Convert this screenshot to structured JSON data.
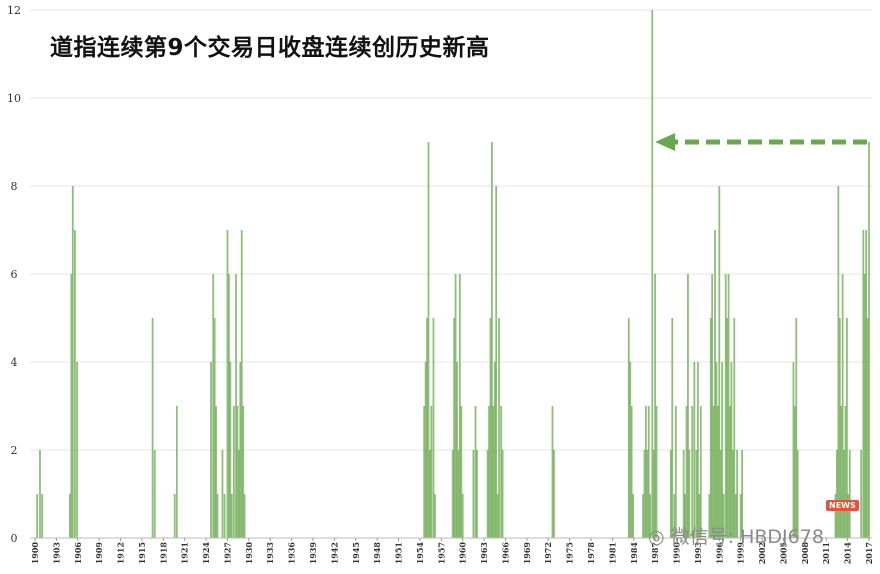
{
  "chart_data": {
    "type": "bar",
    "title": "道指连续第9个交易日收盘连续创历史新高",
    "xlabel": "",
    "ylabel": "",
    "ylim": [
      0,
      12
    ],
    "xlim": [
      1900,
      2017
    ],
    "yticks": [
      "0",
      "2",
      "4",
      "6",
      "8",
      "10",
      "12"
    ],
    "xticks": [
      "1900",
      "1903",
      "1906",
      "1909",
      "1912",
      "1915",
      "1918",
      "1921",
      "1924",
      "1927",
      "1930",
      "1933",
      "1936",
      "1939",
      "1942",
      "1945",
      "1948",
      "1951",
      "1954",
      "1957",
      "1960",
      "1963",
      "1966",
      "1969",
      "1972",
      "1975",
      "1978",
      "1981",
      "1984",
      "1987",
      "1990",
      "1993",
      "1996",
      "1999",
      "2002",
      "2005",
      "2008",
      "2011",
      "2014",
      "2017"
    ],
    "grid": true,
    "bar_color": "#6aa84f",
    "bars": [
      {
        "x": 1900.3,
        "y": 1
      },
      {
        "x": 1900.7,
        "y": 2
      },
      {
        "x": 1901.0,
        "y": 1
      },
      {
        "x": 1904.9,
        "y": 1
      },
      {
        "x": 1905.1,
        "y": 6
      },
      {
        "x": 1905.3,
        "y": 8
      },
      {
        "x": 1905.6,
        "y": 7
      },
      {
        "x": 1905.9,
        "y": 4
      },
      {
        "x": 1916.5,
        "y": 5
      },
      {
        "x": 1916.8,
        "y": 2
      },
      {
        "x": 1919.6,
        "y": 1
      },
      {
        "x": 1919.9,
        "y": 3
      },
      {
        "x": 1924.7,
        "y": 4
      },
      {
        "x": 1925.0,
        "y": 6
      },
      {
        "x": 1925.2,
        "y": 5
      },
      {
        "x": 1925.4,
        "y": 3
      },
      {
        "x": 1925.6,
        "y": 1
      },
      {
        "x": 1926.3,
        "y": 2
      },
      {
        "x": 1926.6,
        "y": 1
      },
      {
        "x": 1927.0,
        "y": 7
      },
      {
        "x": 1927.2,
        "y": 6
      },
      {
        "x": 1927.4,
        "y": 4
      },
      {
        "x": 1927.6,
        "y": 1
      },
      {
        "x": 1927.9,
        "y": 3
      },
      {
        "x": 1928.2,
        "y": 6
      },
      {
        "x": 1928.4,
        "y": 3
      },
      {
        "x": 1928.6,
        "y": 2
      },
      {
        "x": 1928.8,
        "y": 4
      },
      {
        "x": 1929.0,
        "y": 7
      },
      {
        "x": 1929.2,
        "y": 3
      },
      {
        "x": 1929.4,
        "y": 1
      },
      {
        "x": 1954.6,
        "y": 3
      },
      {
        "x": 1954.8,
        "y": 4
      },
      {
        "x": 1955.0,
        "y": 5
      },
      {
        "x": 1955.2,
        "y": 9
      },
      {
        "x": 1955.4,
        "y": 2
      },
      {
        "x": 1955.6,
        "y": 3
      },
      {
        "x": 1955.9,
        "y": 5
      },
      {
        "x": 1956.1,
        "y": 1
      },
      {
        "x": 1958.6,
        "y": 2
      },
      {
        "x": 1958.8,
        "y": 5
      },
      {
        "x": 1959.0,
        "y": 6
      },
      {
        "x": 1959.2,
        "y": 4
      },
      {
        "x": 1959.4,
        "y": 2
      },
      {
        "x": 1959.6,
        "y": 6
      },
      {
        "x": 1959.8,
        "y": 3
      },
      {
        "x": 1960.0,
        "y": 1
      },
      {
        "x": 1961.5,
        "y": 2
      },
      {
        "x": 1961.8,
        "y": 3
      },
      {
        "x": 1962.0,
        "y": 2
      },
      {
        "x": 1963.5,
        "y": 2
      },
      {
        "x": 1963.7,
        "y": 3
      },
      {
        "x": 1963.9,
        "y": 5
      },
      {
        "x": 1964.1,
        "y": 9
      },
      {
        "x": 1964.3,
        "y": 3
      },
      {
        "x": 1964.5,
        "y": 4
      },
      {
        "x": 1964.7,
        "y": 8
      },
      {
        "x": 1964.9,
        "y": 1
      },
      {
        "x": 1965.1,
        "y": 5
      },
      {
        "x": 1965.4,
        "y": 3
      },
      {
        "x": 1965.6,
        "y": 2
      },
      {
        "x": 1972.6,
        "y": 3
      },
      {
        "x": 1972.8,
        "y": 2
      },
      {
        "x": 1983.3,
        "y": 5
      },
      {
        "x": 1983.5,
        "y": 4
      },
      {
        "x": 1983.7,
        "y": 3
      },
      {
        "x": 1983.9,
        "y": 1
      },
      {
        "x": 1985.3,
        "y": 1
      },
      {
        "x": 1985.5,
        "y": 2
      },
      {
        "x": 1985.7,
        "y": 3
      },
      {
        "x": 1985.9,
        "y": 2
      },
      {
        "x": 1986.1,
        "y": 3
      },
      {
        "x": 1986.3,
        "y": 1
      },
      {
        "x": 1986.6,
        "y": 12
      },
      {
        "x": 1986.8,
        "y": 2
      },
      {
        "x": 1987.0,
        "y": 6
      },
      {
        "x": 1987.2,
        "y": 3
      },
      {
        "x": 1989.2,
        "y": 2
      },
      {
        "x": 1989.4,
        "y": 5
      },
      {
        "x": 1989.7,
        "y": 1
      },
      {
        "x": 1989.9,
        "y": 3
      },
      {
        "x": 1991.0,
        "y": 2
      },
      {
        "x": 1991.2,
        "y": 1
      },
      {
        "x": 1991.4,
        "y": 3
      },
      {
        "x": 1991.6,
        "y": 6
      },
      {
        "x": 1991.8,
        "y": 2
      },
      {
        "x": 1992.2,
        "y": 3
      },
      {
        "x": 1992.5,
        "y": 4
      },
      {
        "x": 1992.8,
        "y": 2
      },
      {
        "x": 1993.0,
        "y": 4
      },
      {
        "x": 1993.2,
        "y": 1
      },
      {
        "x": 1993.4,
        "y": 3
      },
      {
        "x": 1994.6,
        "y": 1
      },
      {
        "x": 1994.8,
        "y": 5
      },
      {
        "x": 1995.0,
        "y": 6
      },
      {
        "x": 1995.2,
        "y": 3
      },
      {
        "x": 1995.4,
        "y": 7
      },
      {
        "x": 1995.6,
        "y": 4
      },
      {
        "x": 1995.8,
        "y": 3
      },
      {
        "x": 1996.0,
        "y": 8
      },
      {
        "x": 1996.2,
        "y": 2
      },
      {
        "x": 1996.4,
        "y": 4
      },
      {
        "x": 1996.6,
        "y": 1
      },
      {
        "x": 1996.9,
        "y": 6
      },
      {
        "x": 1997.1,
        "y": 5
      },
      {
        "x": 1997.3,
        "y": 6
      },
      {
        "x": 1997.5,
        "y": 3
      },
      {
        "x": 1997.7,
        "y": 4
      },
      {
        "x": 1997.9,
        "y": 2
      },
      {
        "x": 1998.1,
        "y": 5
      },
      {
        "x": 1998.3,
        "y": 1
      },
      {
        "x": 1998.5,
        "y": 2
      },
      {
        "x": 1999.0,
        "y": 1
      },
      {
        "x": 1999.2,
        "y": 2
      },
      {
        "x": 2006.4,
        "y": 4
      },
      {
        "x": 2006.6,
        "y": 3
      },
      {
        "x": 2006.8,
        "y": 5
      },
      {
        "x": 2007.0,
        "y": 2
      },
      {
        "x": 2012.3,
        "y": 1
      },
      {
        "x": 2012.5,
        "y": 2
      },
      {
        "x": 2012.7,
        "y": 8
      },
      {
        "x": 2012.9,
        "y": 5
      },
      {
        "x": 2013.1,
        "y": 3
      },
      {
        "x": 2013.3,
        "y": 6
      },
      {
        "x": 2013.5,
        "y": 2
      },
      {
        "x": 2013.7,
        "y": 3
      },
      {
        "x": 2013.9,
        "y": 5
      },
      {
        "x": 2014.1,
        "y": 1
      },
      {
        "x": 2014.3,
        "y": 2
      },
      {
        "x": 2015.9,
        "y": 2
      },
      {
        "x": 2016.2,
        "y": 7
      },
      {
        "x": 2016.4,
        "y": 6
      },
      {
        "x": 2016.6,
        "y": 7
      },
      {
        "x": 2016.8,
        "y": 5
      },
      {
        "x": 2017.0,
        "y": 9
      }
    ],
    "annotations": [
      {
        "type": "dashed-arrow",
        "direction": "left",
        "y": 9,
        "x_from": 2017,
        "x_to": 1987,
        "color": "#6aa84f"
      }
    ]
  },
  "watermark": {
    "text": "微信号: HBDJ678",
    "badge": "NEWS"
  }
}
